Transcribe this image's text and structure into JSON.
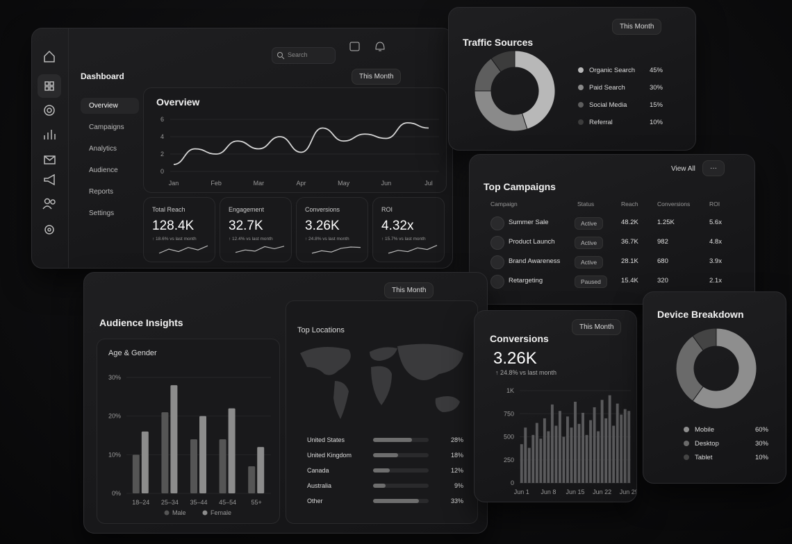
{
  "sidebar": {
    "title": "Dashboard",
    "nav": [
      "Overview",
      "Campaigns",
      "Analytics",
      "Audience",
      "Reports",
      "Settings"
    ]
  },
  "topbar": {
    "search": "Search",
    "period": "This Month"
  },
  "overview": {
    "title": "Overview",
    "xlabels": [
      "Jan",
      "Feb",
      "Mar",
      "Apr",
      "May",
      "Jun",
      "Jul"
    ],
    "ylim": [
      0,
      6
    ],
    "yticks": [
      0,
      2,
      4,
      6
    ],
    "values": [
      0.8,
      2.6,
      2.0,
      3.5,
      2.6,
      4.0,
      2.2,
      5.0,
      3.5,
      4.3,
      3.8,
      5.6,
      5.0
    ]
  },
  "kpis": [
    {
      "label": "Total Reach",
      "value": "128.4K",
      "change": "↑ 18.6% vs last month",
      "trend": [
        1,
        2,
        1.4,
        2.4,
        1.8,
        2.8
      ]
    },
    {
      "label": "Engagement",
      "value": "32.7K",
      "change": "↑ 12.4% vs last month",
      "trend": [
        1.2,
        1.8,
        1.5,
        2.6,
        2.1,
        2.7
      ]
    },
    {
      "label": "Conversions",
      "value": "3.26K",
      "change": "↑ 24.8% vs last month",
      "trend": [
        1,
        1.6,
        1.3,
        2.2,
        2.5,
        2.4
      ]
    },
    {
      "label": "ROI",
      "value": "4.32x",
      "change": "↑ 15.7% vs last month",
      "trend": [
        1,
        1.7,
        1.4,
        2.3,
        1.9,
        2.9
      ]
    }
  ],
  "traffic": {
    "title": "Traffic Sources",
    "period": "This Month",
    "names": [
      "Organic Search",
      "Paid Search",
      "Social Media",
      "Referral"
    ],
    "values": [
      45,
      30,
      15,
      10
    ],
    "value_labels": [
      "45%",
      "30%",
      "15%",
      "10%"
    ],
    "colors": [
      "#b8b8b8",
      "#8a8a8a",
      "#5e5e5e",
      "#3c3c3c"
    ]
  },
  "campaigns": {
    "title": "Top Campaigns",
    "view_all": "View All",
    "more": "···",
    "columns": [
      "Campaign",
      "Status",
      "Reach",
      "Conversions",
      "ROI"
    ],
    "rows": [
      [
        "Summer Sale",
        "Active",
        "48.2K",
        "1.25K",
        "5.6x"
      ],
      [
        "Product Launch",
        "Active",
        "36.7K",
        "982",
        "4.8x"
      ],
      [
        "Brand Awareness",
        "Active",
        "28.1K",
        "680",
        "3.9x"
      ],
      [
        "Retargeting",
        "Paused",
        "15.4K",
        "320",
        "2.1x"
      ]
    ]
  },
  "audience": {
    "title": "Audience Insights",
    "period": "This Month",
    "age_gender": {
      "title": "Age & Gender",
      "categories": [
        "18–24",
        "25–34",
        "35–44",
        "45–54",
        "55+"
      ],
      "series": [
        {
          "name": "Male",
          "color": "#555555",
          "values": [
            10,
            21,
            14,
            14,
            7
          ]
        },
        {
          "name": "Female",
          "color": "#8c8c8c",
          "values": [
            16,
            28,
            20,
            22,
            12
          ]
        }
      ],
      "ylim": [
        0,
        30
      ],
      "yticks": [
        {
          "value": 0,
          "label": "0%"
        },
        {
          "value": 10,
          "label": "10%"
        },
        {
          "value": 20,
          "label": "20%"
        },
        {
          "value": 30,
          "label": "30%"
        }
      ]
    },
    "locations": {
      "title": "Top Locations",
      "names": [
        "United States",
        "United Kingdom",
        "Canada",
        "Australia",
        "Other"
      ],
      "values": [
        28,
        18,
        12,
        9,
        33
      ],
      "value_labels": [
        "28%",
        "18%",
        "12%",
        "9%",
        "33%"
      ]
    }
  },
  "conversions": {
    "title": "Conversions",
    "period": "This Month",
    "value": "3.26K",
    "change": "↑ 24.8% vs last month",
    "xlabels": [
      "Jun 1",
      "Jun 8",
      "Jun 15",
      "Jun 22",
      "Jun 29"
    ],
    "ylim": [
      0,
      1000
    ],
    "yticks": [
      0,
      250,
      500,
      750,
      {
        "value": 1000,
        "label": "1K"
      }
    ],
    "values": [
      420,
      600,
      380,
      520,
      650,
      480,
      700,
      560,
      850,
      620,
      780,
      500,
      720,
      600,
      880,
      640,
      760,
      520,
      680,
      820,
      560,
      900,
      700,
      950,
      620,
      860,
      740,
      800,
      780
    ]
  },
  "device": {
    "title": "Device Breakdown",
    "names": [
      "Mobile",
      "Desktop",
      "Tablet"
    ],
    "values": [
      60,
      30,
      10
    ],
    "value_labels": [
      "60%",
      "30%",
      "10%"
    ],
    "colors": [
      "#8e8e8e",
      "#6a6a6a",
      "#444444"
    ]
  }
}
